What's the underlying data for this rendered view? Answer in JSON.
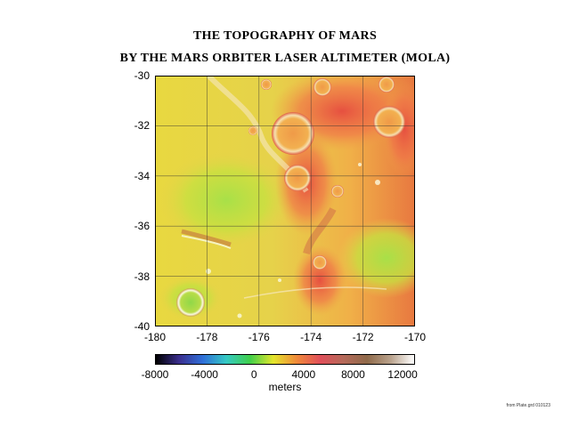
{
  "title_line1": "THE TOPOGRAPHY OF MARS",
  "title_line2": "BY THE MARS ORBITER LASER ALTIMETER (MOLA)",
  "map": {
    "y_ticks": [
      "-30",
      "-32",
      "-34",
      "-36",
      "-38",
      "-40"
    ],
    "x_ticks": [
      "-180",
      "-178",
      "-176",
      "-174",
      "-172",
      "-170"
    ],
    "lat_range": [
      -40,
      -30
    ],
    "lon_range": [
      -180,
      -170
    ],
    "grid": true
  },
  "colorbar": {
    "ticks": [
      "-8000",
      "-4000",
      "0",
      "4000",
      "8000",
      "12000"
    ],
    "label": "meters",
    "range": [
      -8000,
      13000
    ],
    "colors": [
      "#000000",
      "#3b2f8f",
      "#2f6fd8",
      "#35c9c4",
      "#3fcf4a",
      "#e4e52c",
      "#f08a3a",
      "#e04f5a",
      "#b56a5a",
      "#8f6a4a",
      "#b9a28c",
      "#ffffff"
    ]
  },
  "footnote": "from Plate.grd 010123"
}
